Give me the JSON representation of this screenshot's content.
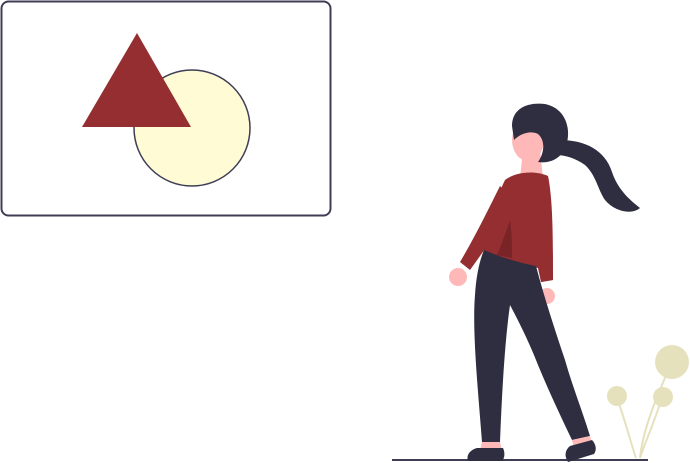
{
  "illustration": {
    "subject": "woman-looking-at-shapes-board",
    "colors": {
      "board_fill": "#ffffff",
      "board_stroke": "#3f3d56",
      "triangle": "#952e31",
      "circle_fill": "#fffcd5",
      "circle_stroke": "#3f3d56",
      "hair": "#2f2e41",
      "skin": "#ffb8b8",
      "sweater": "#952e31",
      "sweater_shadow": "#7a2427",
      "pants": "#2f2e41",
      "shoes": "#2f2e41",
      "ground": "#3f3d56",
      "plant": "#e6e1bd",
      "plant_stem": "#e6e1bd"
    },
    "icons": [
      "board-icon",
      "triangle-icon",
      "circle-icon",
      "person-icon",
      "plant-icon"
    ]
  }
}
